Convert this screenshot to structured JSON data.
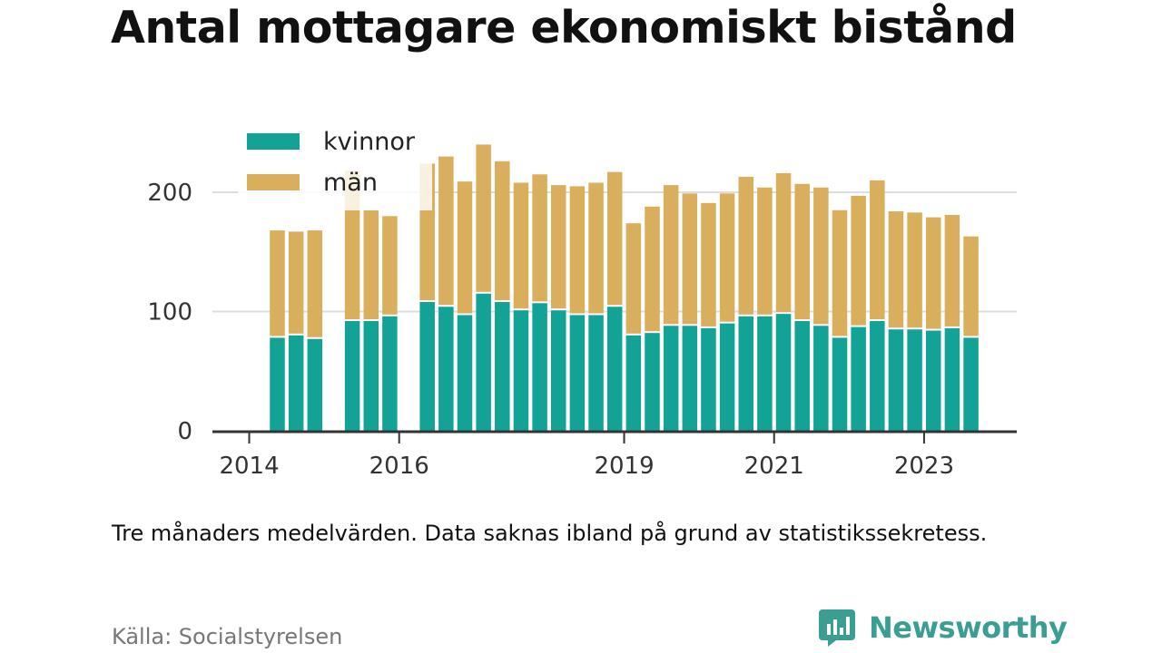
{
  "page": {
    "title": "Antal mottagare ekonomiskt bistånd",
    "note": "Tre månaders medelvärden. Data saknas ibland på grund av statistikssekretess.",
    "source": "Källa: Socialstyrelsen",
    "brand": "Newsworthy"
  },
  "chart_data": {
    "type": "bar",
    "stacked": true,
    "grid": true,
    "legend_position": "top-left",
    "ylim": [
      0,
      240
    ],
    "y_ticks": [
      0,
      100,
      200
    ],
    "x_tick_labels": [
      "2014",
      "2016",
      "2019",
      "2021",
      "2023"
    ],
    "x_tick_quarters": [
      "2014-Q1",
      "2016-Q1",
      "2019-Q1",
      "2021-Q1",
      "2023-Q1"
    ],
    "categories": [
      "2014-Q2",
      "2014-Q3",
      "2014-Q4",
      "2015-Q1",
      "2015-Q2",
      "2015-Q3",
      "2015-Q4",
      "2016-Q1",
      "2016-Q2",
      "2016-Q3",
      "2016-Q4",
      "2017-Q1",
      "2017-Q2",
      "2017-Q3",
      "2017-Q4",
      "2018-Q1",
      "2018-Q2",
      "2018-Q3",
      "2018-Q4",
      "2019-Q1",
      "2019-Q2",
      "2019-Q3",
      "2019-Q4",
      "2020-Q1",
      "2020-Q2",
      "2020-Q3",
      "2020-Q4",
      "2021-Q1",
      "2021-Q2",
      "2021-Q3",
      "2021-Q4",
      "2022-Q1",
      "2022-Q2",
      "2022-Q3",
      "2022-Q4",
      "2023-Q1",
      "2023-Q2",
      "2023-Q3",
      "2023-Q4"
    ],
    "series": [
      {
        "name": "kvinnor",
        "color": "#12a396",
        "values": [
          78,
          80,
          77,
          null,
          92,
          92,
          96,
          null,
          108,
          104,
          97,
          115,
          108,
          101,
          107,
          101,
          97,
          97,
          104,
          80,
          82,
          88,
          88,
          86,
          90,
          96,
          96,
          98,
          92,
          88,
          78,
          87,
          92,
          85,
          85,
          84,
          86,
          78,
          null
        ]
      },
      {
        "name": "män",
        "color": "#d9ae5c",
        "values": [
          90,
          87,
          91,
          null,
          126,
          93,
          84,
          null,
          116,
          126,
          112,
          125,
          118,
          107,
          108,
          105,
          108,
          111,
          113,
          94,
          106,
          118,
          111,
          105,
          109,
          117,
          108,
          118,
          115,
          116,
          107,
          110,
          118,
          99,
          98,
          95,
          95,
          85,
          null
        ]
      }
    ]
  },
  "brand_colors": {
    "accent": "#3a9e92"
  },
  "icons": [
    "newsworthy-logo-icon"
  ]
}
